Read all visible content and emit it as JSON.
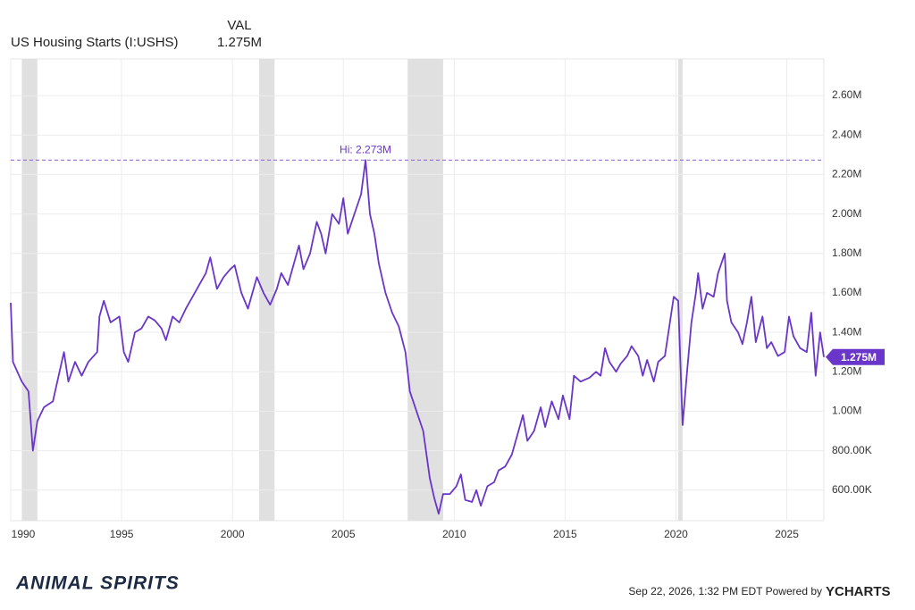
{
  "chart_data": {
    "type": "line",
    "header_label": "VAL",
    "series_title": "US Housing Starts (I:USHS)",
    "last_value_label": "1.275M",
    "last_value": 1275000,
    "hi_label": "Hi: 2.273M",
    "hi_value": 2273000,
    "x": [
      1990.0,
      1990.1,
      1990.3,
      1990.5,
      1990.8,
      1991.0,
      1991.2,
      1991.5,
      1991.9,
      1992.2,
      1992.4,
      1992.6,
      1992.9,
      1993.2,
      1993.5,
      1993.9,
      1994.0,
      1994.2,
      1994.5,
      1994.9,
      1995.1,
      1995.3,
      1995.6,
      1995.9,
      1996.2,
      1996.5,
      1996.8,
      1997.0,
      1997.3,
      1997.6,
      1997.9,
      1998.2,
      1998.5,
      1998.8,
      1999.0,
      1999.3,
      1999.6,
      1999.9,
      2000.1,
      2000.4,
      2000.7,
      2000.9,
      2001.1,
      2001.4,
      2001.7,
      2002.0,
      2002.2,
      2002.5,
      2002.8,
      2003.0,
      2003.2,
      2003.5,
      2003.8,
      2004.0,
      2004.2,
      2004.5,
      2004.8,
      2005.0,
      2005.2,
      2005.5,
      2005.8,
      2006.0,
      2006.2,
      2006.4,
      2006.6,
      2006.9,
      2007.2,
      2007.5,
      2007.8,
      2008.0,
      2008.3,
      2008.6,
      2008.9,
      2009.1,
      2009.3,
      2009.5,
      2009.8,
      2010.1,
      2010.3,
      2010.5,
      2010.8,
      2011.0,
      2011.2,
      2011.5,
      2011.8,
      2012.0,
      2012.3,
      2012.6,
      2012.9,
      2013.1,
      2013.3,
      2013.6,
      2013.9,
      2014.1,
      2014.4,
      2014.7,
      2014.9,
      2015.2,
      2015.4,
      2015.7,
      2015.9,
      2016.1,
      2016.4,
      2016.6,
      2016.8,
      2017.0,
      2017.3,
      2017.5,
      2017.8,
      2018.0,
      2018.3,
      2018.5,
      2018.7,
      2019.0,
      2019.2,
      2019.5,
      2019.9,
      2020.1,
      2020.3,
      2020.5,
      2020.7,
      2020.9,
      2021.0,
      2021.2,
      2021.4,
      2021.7,
      2021.9,
      2022.2,
      2022.3,
      2022.5,
      2022.8,
      2023.0,
      2023.2,
      2023.4,
      2023.6,
      2023.9,
      2024.1,
      2024.3,
      2024.6,
      2024.9,
      2025.1,
      2025.3,
      2025.6,
      2025.9,
      2026.1,
      2026.3,
      2026.5,
      2026.67
    ],
    "series": [
      {
        "name": "US Housing Starts (I:USHS)",
        "color": "#6a35c9",
        "values": [
          1550000,
          1250000,
          1200000,
          1150000,
          1100000,
          800000,
          950000,
          1020000,
          1050000,
          1200000,
          1300000,
          1150000,
          1250000,
          1180000,
          1250000,
          1300000,
          1480000,
          1560000,
          1450000,
          1480000,
          1300000,
          1250000,
          1400000,
          1420000,
          1480000,
          1460000,
          1420000,
          1360000,
          1480000,
          1450000,
          1520000,
          1580000,
          1640000,
          1700000,
          1780000,
          1620000,
          1680000,
          1720000,
          1740000,
          1600000,
          1520000,
          1600000,
          1680000,
          1600000,
          1540000,
          1620000,
          1700000,
          1640000,
          1760000,
          1840000,
          1720000,
          1800000,
          1960000,
          1900000,
          1800000,
          2000000,
          1950000,
          2080000,
          1900000,
          2000000,
          2100000,
          2273000,
          2000000,
          1900000,
          1750000,
          1600000,
          1500000,
          1430000,
          1300000,
          1100000,
          1000000,
          900000,
          660000,
          560000,
          480000,
          580000,
          580000,
          620000,
          680000,
          550000,
          540000,
          600000,
          520000,
          620000,
          640000,
          700000,
          720000,
          780000,
          900000,
          980000,
          850000,
          900000,
          1020000,
          920000,
          1050000,
          960000,
          1080000,
          960000,
          1180000,
          1150000,
          1160000,
          1170000,
          1200000,
          1180000,
          1320000,
          1250000,
          1200000,
          1240000,
          1280000,
          1330000,
          1280000,
          1180000,
          1260000,
          1150000,
          1250000,
          1280000,
          1580000,
          1560000,
          930000,
          1200000,
          1450000,
          1600000,
          1700000,
          1520000,
          1600000,
          1580000,
          1700000,
          1800000,
          1560000,
          1450000,
          1400000,
          1340000,
          1450000,
          1580000,
          1350000,
          1480000,
          1320000,
          1350000,
          1280000,
          1300000,
          1480000,
          1380000,
          1320000,
          1300000,
          1500000,
          1180000,
          1400000,
          1275000
        ]
      }
    ],
    "recessions": [
      [
        1990.5,
        1991.2
      ],
      [
        2001.2,
        2001.9
      ],
      [
        2007.9,
        2009.5
      ],
      [
        2020.1,
        2020.3
      ]
    ],
    "xlim": [
      1990,
      2026.67
    ],
    "xticks": [
      1990,
      1995,
      2000,
      2005,
      2010,
      2015,
      2020,
      2025
    ],
    "ylim": [
      445000,
      2786000
    ],
    "yticks": [
      {
        "value": 600000,
        "label": "600.00K"
      },
      {
        "value": 800000,
        "label": "800.00K"
      },
      {
        "value": 1000000,
        "label": "1.00M"
      },
      {
        "value": 1200000,
        "label": "1.20M"
      },
      {
        "value": 1400000,
        "label": "1.40M"
      },
      {
        "value": 1600000,
        "label": "1.60M"
      },
      {
        "value": 1800000,
        "label": "1.80M"
      },
      {
        "value": 2000000,
        "label": "2.00M"
      },
      {
        "value": 2200000,
        "label": "2.20M"
      },
      {
        "value": 2400000,
        "label": "2.40M"
      },
      {
        "value": 2600000,
        "label": "2.60M"
      }
    ],
    "grid": true,
    "footer_logo": "ANIMAL SPIRITS",
    "footer_text": "Sep 22, 2026, 1:32 PM EDT Powered by",
    "footer_brand": "YCHARTS"
  }
}
